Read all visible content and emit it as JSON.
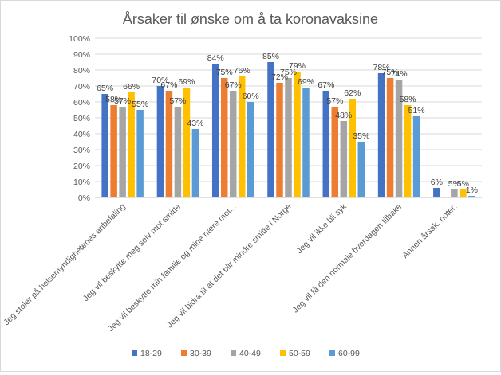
{
  "chart_data": {
    "type": "bar",
    "title": "Årsaker til ønske om å ta koronavaksine",
    "xlabel": "",
    "ylabel": "",
    "ylim": [
      0,
      100
    ],
    "y_ticks": [
      "0%",
      "10%",
      "20%",
      "30%",
      "40%",
      "50%",
      "60%",
      "70%",
      "80%",
      "90%",
      "100%"
    ],
    "grid": true,
    "legend_position": "bottom",
    "categories": [
      "Jeg stoler på helsemyndighetenes anbefaling",
      "Jeg vil beskytte meg selv mot smitte",
      "Jeg vil beskytte min familie og mine nære mot...",
      "Jeg vil bidra til at det blir mindre smitte i Norge",
      "Jeg vil ikke bli syk",
      "Jeg vil få den normale hverdagen tilbake",
      "Annen årsak, noter:"
    ],
    "series": [
      {
        "name": "18-29",
        "color": "#4472c4",
        "values": [
          65,
          70,
          84,
          85,
          67,
          78,
          6
        ]
      },
      {
        "name": "30-39",
        "color": "#ed7d31",
        "values": [
          58,
          67,
          75,
          72,
          57,
          75,
          0
        ]
      },
      {
        "name": "40-49",
        "color": "#a5a5a5",
        "values": [
          57,
          57,
          67,
          75,
          48,
          74,
          5
        ]
      },
      {
        "name": "50-59",
        "color": "#ffc000",
        "values": [
          66,
          69,
          76,
          79,
          62,
          58,
          5
        ]
      },
      {
        "name": "60-99",
        "color": "#5b9bd5",
        "values": [
          55,
          43,
          60,
          69,
          35,
          51,
          1
        ]
      }
    ],
    "data_labels": [
      [
        "65%",
        "58%",
        "57%",
        "66%",
        "55%"
      ],
      [
        "70%",
        "67%",
        "57%",
        "69%",
        "43%"
      ],
      [
        "84%",
        "75%",
        "67%",
        "76%",
        "60%"
      ],
      [
        "85%",
        "72%",
        "75%",
        "79%",
        "69%"
      ],
      [
        "67%",
        "57%",
        "48%",
        "62%",
        "35%"
      ],
      [
        "78%",
        "75%",
        "74%",
        "58%",
        "51%"
      ],
      [
        "6%",
        "",
        "5%",
        "5%",
        "1%"
      ]
    ]
  }
}
